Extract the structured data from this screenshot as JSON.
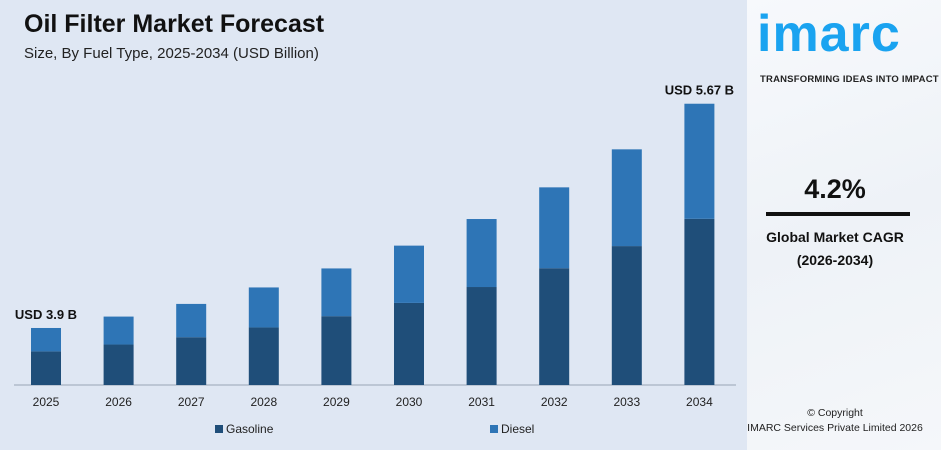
{
  "header": {
    "title": "Oil Filter Market Forecast",
    "subtitle": "Size, By Fuel Type, 2025-2034 (USD Billion)"
  },
  "chart_data": {
    "type": "bar",
    "stacked": true,
    "categories": [
      "2025",
      "2026",
      "2027",
      "2028",
      "2029",
      "2030",
      "2031",
      "2032",
      "2033",
      "2034"
    ],
    "series": [
      {
        "name": "Gasoline",
        "color": "#1f4e79",
        "values": [
          2.3,
          2.36,
          2.41,
          2.49,
          2.58,
          2.68,
          2.81,
          2.96,
          3.13,
          3.35
        ]
      },
      {
        "name": "Diesel",
        "color": "#2e75b6",
        "values": [
          1.6,
          1.63,
          1.68,
          1.73,
          1.79,
          1.87,
          1.95,
          2.05,
          2.18,
          2.32
        ]
      }
    ],
    "annotations": [
      {
        "category": "2025",
        "text": "USD 3.9 B"
      },
      {
        "category": "2034",
        "text": "USD 5.67 B"
      }
    ],
    "legend": "bottom",
    "grid": false,
    "y_axis_visible": false
  },
  "sidebar": {
    "logo": "imarc",
    "tagline": "TRANSFORMING IDEAS INTO IMPACT",
    "cagr": "4.2%",
    "cagr_label": "Global Market CAGR",
    "cagr_period": "(2026-2034)",
    "copyright": "© Copyright",
    "company": "IMARC Services Private Limited 2026"
  }
}
